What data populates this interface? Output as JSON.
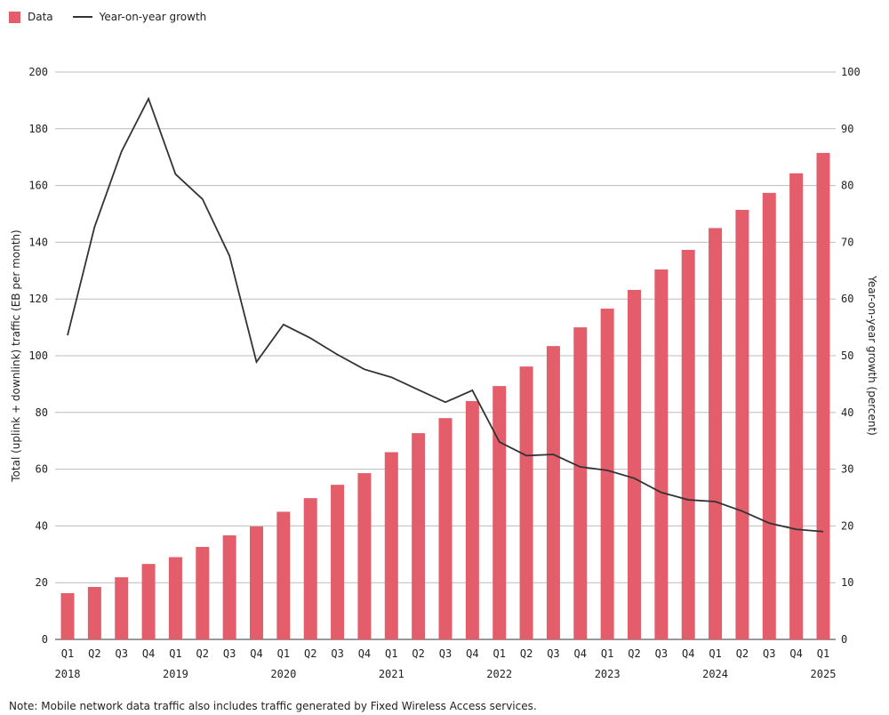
{
  "chart_data": {
    "type": "bar+line",
    "legend": {
      "placement": "top-left",
      "items": [
        "Data",
        "Year-on-year growth"
      ]
    },
    "categories": [
      "Q1",
      "Q2",
      "Q3",
      "Q4",
      "Q1",
      "Q2",
      "Q3",
      "Q4",
      "Q1",
      "Q2",
      "Q3",
      "Q4",
      "Q1",
      "Q2",
      "Q3",
      "Q4",
      "Q1",
      "Q2",
      "Q3",
      "Q4",
      "Q1",
      "Q2",
      "Q3",
      "Q4",
      "Q1",
      "Q2",
      "Q3",
      "Q4",
      "Q1"
    ],
    "year_labels": [
      {
        "index": 0,
        "label": "2018"
      },
      {
        "index": 4,
        "label": "2019"
      },
      {
        "index": 8,
        "label": "2020"
      },
      {
        "index": 12,
        "label": "2021"
      },
      {
        "index": 16,
        "label": "2022"
      },
      {
        "index": 20,
        "label": "2023"
      },
      {
        "index": 24,
        "label": "2024"
      },
      {
        "index": 28,
        "label": "2025"
      }
    ],
    "series": [
      {
        "name": "Data",
        "type": "bar",
        "axis": "left",
        "color": "#e35d6a",
        "values": [
          16.3,
          18.5,
          21.9,
          26.6,
          29,
          32.6,
          36.7,
          39.8,
          45,
          49.8,
          54.5,
          58.6,
          66,
          72.7,
          78,
          84,
          89.3,
          96.2,
          103.4,
          110,
          116.6,
          123.2,
          130.4,
          137.3,
          145,
          151.4,
          157.4,
          164.3,
          171.5
        ]
      },
      {
        "name": "Year-on-year growth",
        "type": "line",
        "axis": "right",
        "color": "#333333",
        "values": [
          53.6,
          72.7,
          86,
          95.3,
          82,
          77.6,
          67.6,
          48.9,
          55.5,
          53.1,
          50.2,
          47.6,
          46.2,
          44,
          41.8,
          43.9,
          34.8,
          32.4,
          32.6,
          30.4,
          29.8,
          28.4,
          25.9,
          24.6,
          24.3,
          22.6,
          20.5,
          19.4,
          19
        ]
      }
    ],
    "ylabel": "Total (uplink + downlink) traffic (EB per month)",
    "y2label": "Year-on-year growth (percent)",
    "ylim": [
      0,
      200
    ],
    "y2lim": [
      0,
      100
    ],
    "yticks": [
      0,
      20,
      40,
      60,
      80,
      100,
      120,
      140,
      160,
      180,
      200
    ],
    "y2ticks": [
      0,
      10,
      20,
      30,
      40,
      50,
      60,
      70,
      80,
      90,
      100
    ],
    "grid": true
  },
  "note": "Note: Mobile network data traffic also includes traffic generated by Fixed Wireless Access services."
}
